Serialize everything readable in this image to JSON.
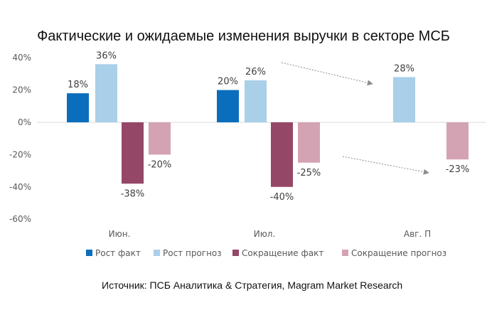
{
  "chart_data": {
    "type": "bar",
    "title": "Фактические и ожидаемые изменения выручки в секторе МСБ",
    "categories": [
      "Июн.",
      "Июл.",
      "Авг. П"
    ],
    "series": [
      {
        "name": "Рост факт",
        "values": [
          18,
          20,
          null
        ],
        "labels": [
          "18%",
          "20%",
          null
        ],
        "color": "#0a6ebd"
      },
      {
        "name": "Рост прогноз",
        "values": [
          36,
          26,
          28
        ],
        "labels": [
          "36%",
          "26%",
          "28%"
        ],
        "color": "#a9cfe9"
      },
      {
        "name": "Сокращение факт",
        "values": [
          -38,
          -40,
          null
        ],
        "labels": [
          "-38%",
          "-40%",
          null
        ],
        "color": "#954767"
      },
      {
        "name": "Сокращение прогноз",
        "values": [
          -20,
          -25,
          -23
        ],
        "labels": [
          "-20%",
          "-25%",
          "-23%"
        ],
        "color": "#d4a3b3"
      }
    ],
    "y_ticks": [
      "40%",
      "20%",
      "0%",
      "-20%",
      "-40%",
      "-60%"
    ],
    "y_tick_values": [
      40,
      20,
      0,
      -20,
      -40,
      -60
    ],
    "ylim": [
      -60,
      40
    ],
    "legend_position": "bottom",
    "grid": false,
    "source": "Источник: ПСБ Аналитика & Стратегия, Magram Market Research"
  }
}
